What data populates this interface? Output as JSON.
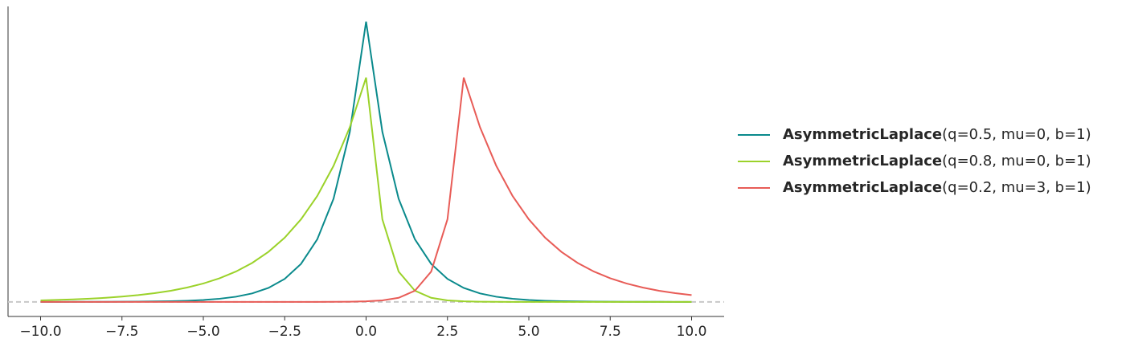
{
  "chart_data": {
    "type": "line",
    "x": [
      -10,
      -9.5,
      -9,
      -8.5,
      -8,
      -7.5,
      -7,
      -6.5,
      -6,
      -5.5,
      -5,
      -4.5,
      -4,
      -3.5,
      -3,
      -2.5,
      -2,
      -1.5,
      -1,
      -0.5,
      0,
      0.5,
      1,
      1.5,
      2,
      2.5,
      3,
      3.5,
      4,
      4.5,
      5,
      5.5,
      6,
      6.5,
      7,
      7.5,
      8,
      8.5,
      9,
      9.5,
      10
    ],
    "series": [
      {
        "name": "AsymmetricLaplace(q=0.5, mu=0, b=1)",
        "color": "#0a8a8c",
        "values": [
          0.0,
          0.0,
          0.0001,
          0.0001,
          0.0002,
          0.0003,
          0.0005,
          0.0008,
          0.0012,
          0.002,
          0.0034,
          0.0056,
          0.0092,
          0.0151,
          0.0249,
          0.041,
          0.0677,
          0.1116,
          0.1839,
          0.3033,
          0.5,
          0.3033,
          0.1839,
          0.1116,
          0.0677,
          0.041,
          0.0249,
          0.0151,
          0.0092,
          0.0056,
          0.0034,
          0.002,
          0.0012,
          0.0008,
          0.0005,
          0.0003,
          0.0002,
          0.0001,
          0.0001,
          0.0,
          0.0
        ]
      },
      {
        "name": "AsymmetricLaplace(q=0.8, mu=0, b=1)",
        "color": "#9bd22a",
        "values": [
          0.0027,
          0.0035,
          0.0044,
          0.0057,
          0.0073,
          0.0094,
          0.0121,
          0.0155,
          0.0199,
          0.0256,
          0.0328,
          0.0422,
          0.0541,
          0.0695,
          0.0893,
          0.1146,
          0.1472,
          0.1889,
          0.2426,
          0.3115,
          0.4,
          0.1472,
          0.0541,
          0.0199,
          0.0073,
          0.0027,
          0.001,
          0.0004,
          0.0001,
          0.0,
          0.0,
          0.0,
          0.0,
          0.0,
          0.0,
          0.0,
          0.0,
          0.0,
          0.0,
          0.0,
          0.0
        ]
      },
      {
        "name": "AsymmetricLaplace(q=0.2, mu=3, b=1)",
        "color": "#e85c57",
        "values": [
          0.0,
          0.0,
          0.0,
          0.0,
          0.0,
          0.0,
          0.0,
          0.0,
          0.0,
          0.0,
          0.0,
          0.0,
          0.0,
          0.0,
          0.0,
          0.0,
          0.0,
          0.0,
          0.0001,
          0.0004,
          0.001,
          0.0027,
          0.0073,
          0.0199,
          0.0541,
          0.1472,
          0.4,
          0.3115,
          0.2426,
          0.1889,
          0.1472,
          0.1146,
          0.0893,
          0.0695,
          0.0541,
          0.0422,
          0.0328,
          0.0256,
          0.0199,
          0.0155,
          0.0121
        ]
      }
    ],
    "xlim": [
      -11,
      11
    ],
    "ylim": [
      -0.026,
      0.527
    ],
    "xticks": [
      {
        "value": -10,
        "label": "−10.0"
      },
      {
        "value": -7.5,
        "label": "−7.5"
      },
      {
        "value": -5,
        "label": "−5.0"
      },
      {
        "value": -2.5,
        "label": "−2.5"
      },
      {
        "value": 0,
        "label": "0.0"
      },
      2.5,
      {
        "value": 5,
        "label": "5.0"
      },
      7.5,
      {
        "value": 10,
        "label": "10.0"
      }
    ],
    "legend": "right"
  }
}
